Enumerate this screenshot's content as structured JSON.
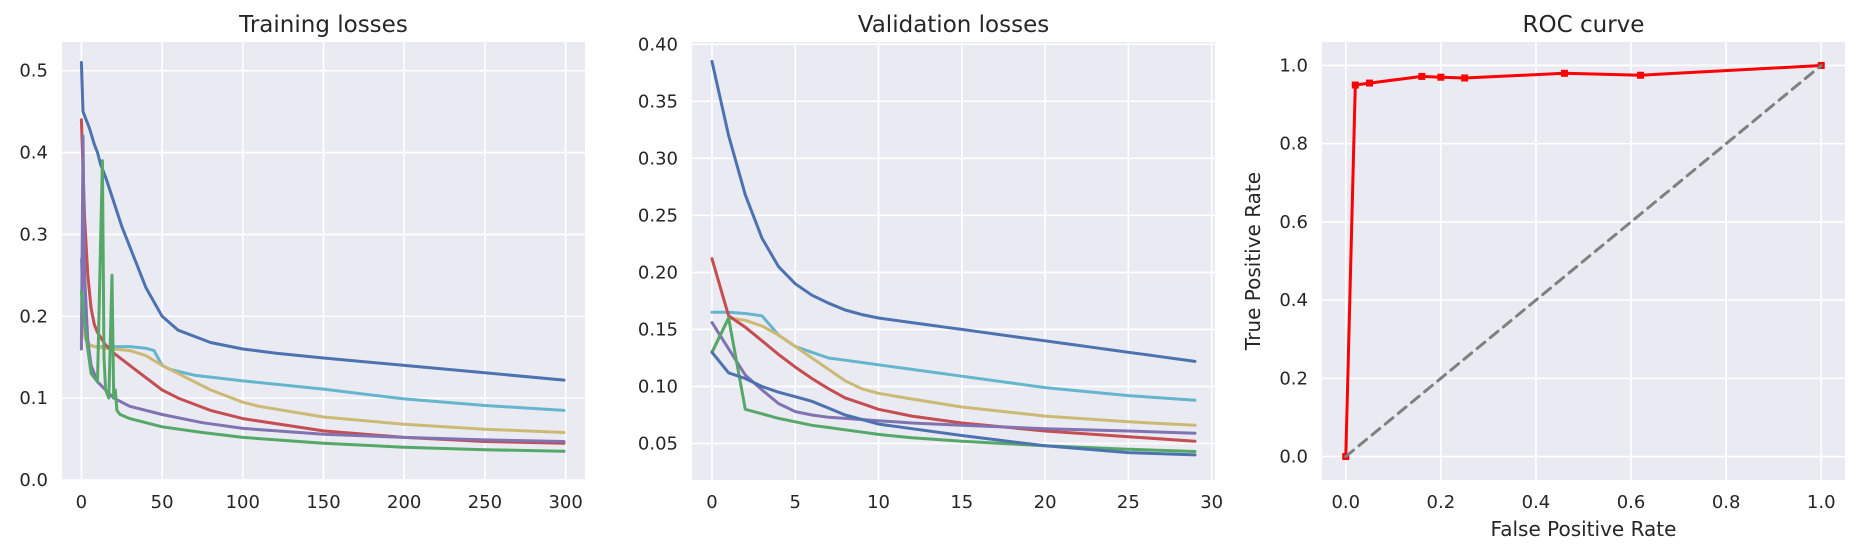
{
  "chart_data": [
    {
      "type": "line",
      "title": "Training losses",
      "xlabel": "",
      "ylabel": "",
      "xlim": [
        -12,
        312
      ],
      "ylim": [
        0,
        0.535
      ],
      "xticks": [
        0,
        50,
        100,
        150,
        200,
        250,
        300
      ],
      "yticks": [
        0.0,
        0.1,
        0.2,
        0.3,
        0.4,
        0.5
      ],
      "grid": true,
      "legend": "none",
      "series": [
        {
          "color": "#4c72b0",
          "x": [
            0,
            1,
            3,
            5,
            8,
            10,
            12,
            15,
            20,
            25,
            30,
            40,
            50,
            60,
            80,
            100,
            120,
            150,
            200,
            250,
            299
          ],
          "y": [
            0.51,
            0.45,
            0.44,
            0.43,
            0.41,
            0.4,
            0.385,
            0.37,
            0.34,
            0.31,
            0.285,
            0.235,
            0.2,
            0.183,
            0.168,
            0.16,
            0.155,
            0.149,
            0.14,
            0.131,
            0.122
          ]
        },
        {
          "color": "#64b5cd",
          "x": [
            0,
            1,
            3,
            5,
            8,
            10,
            15,
            20,
            30,
            40,
            45,
            50,
            55,
            70,
            100,
            150,
            200,
            250,
            299
          ],
          "y": [
            0.27,
            0.22,
            0.175,
            0.165,
            0.163,
            0.163,
            0.163,
            0.163,
            0.163,
            0.161,
            0.158,
            0.14,
            0.135,
            0.128,
            0.121,
            0.111,
            0.099,
            0.091,
            0.085
          ]
        },
        {
          "color": "#ccb974",
          "x": [
            0,
            1,
            3,
            5,
            10,
            20,
            30,
            40,
            50,
            60,
            80,
            100,
            110,
            150,
            200,
            250,
            299
          ],
          "y": [
            0.2,
            0.18,
            0.17,
            0.165,
            0.162,
            0.16,
            0.158,
            0.152,
            0.14,
            0.13,
            0.11,
            0.095,
            0.09,
            0.077,
            0.068,
            0.062,
            0.058
          ]
        },
        {
          "color": "#c44e52",
          "x": [
            0,
            2,
            4,
            6,
            8,
            10,
            15,
            20,
            30,
            40,
            50,
            60,
            80,
            100,
            150,
            200,
            250,
            299
          ],
          "y": [
            0.44,
            0.32,
            0.25,
            0.21,
            0.19,
            0.18,
            0.165,
            0.155,
            0.14,
            0.125,
            0.11,
            0.1,
            0.085,
            0.075,
            0.06,
            0.052,
            0.047,
            0.045
          ]
        },
        {
          "color": "#8172b2",
          "x": [
            0,
            1,
            2,
            4,
            6,
            8,
            10,
            15,
            20,
            30,
            50,
            75,
            100,
            150,
            200,
            250,
            299
          ],
          "y": [
            0.16,
            0.42,
            0.25,
            0.17,
            0.14,
            0.13,
            0.12,
            0.11,
            0.1,
            0.09,
            0.08,
            0.07,
            0.063,
            0.056,
            0.052,
            0.049,
            0.047
          ]
        },
        {
          "color": "#55a868",
          "x": [
            0,
            2,
            4,
            6,
            10,
            13,
            14,
            15,
            17,
            19,
            20,
            21,
            22,
            24,
            30,
            50,
            75,
            100,
            150,
            200,
            250,
            299
          ],
          "y": [
            0.23,
            0.19,
            0.16,
            0.13,
            0.12,
            0.39,
            0.15,
            0.11,
            0.1,
            0.25,
            0.1,
            0.11,
            0.085,
            0.08,
            0.075,
            0.065,
            0.058,
            0.052,
            0.045,
            0.04,
            0.037,
            0.035
          ]
        }
      ]
    },
    {
      "type": "line",
      "title": "Validation losses",
      "xlabel": "",
      "ylabel": "",
      "xlim": [
        -1.2,
        30.2
      ],
      "ylim": [
        0.018,
        0.402
      ],
      "xticks": [
        0,
        5,
        10,
        15,
        20,
        25,
        30
      ],
      "yticks": [
        0.05,
        0.1,
        0.15,
        0.2,
        0.25,
        0.3,
        0.35,
        0.4
      ],
      "grid": true,
      "legend": "none",
      "series": [
        {
          "color": "#4c72b0",
          "x": [
            0,
            1,
            2,
            3,
            4,
            5,
            6,
            7,
            8,
            9,
            10,
            11,
            12,
            13,
            14,
            15,
            16,
            17,
            18,
            19,
            20,
            21,
            22,
            23,
            24,
            25,
            26,
            27,
            28,
            29
          ],
          "y": [
            0.385,
            0.32,
            0.268,
            0.23,
            0.205,
            0.19,
            0.18,
            0.173,
            0.167,
            0.163,
            0.16,
            0.158,
            0.156,
            0.154,
            0.152,
            0.15,
            0.148,
            0.146,
            0.144,
            0.142,
            0.14,
            0.138,
            0.136,
            0.134,
            0.132,
            0.13,
            0.128,
            0.126,
            0.124,
            0.122
          ]
        },
        {
          "color": "#64b5cd",
          "x": [
            0,
            1,
            2,
            3,
            4,
            5,
            6,
            7,
            8,
            9,
            10,
            12,
            15,
            20,
            25,
            29
          ],
          "y": [
            0.165,
            0.165,
            0.164,
            0.162,
            0.145,
            0.135,
            0.13,
            0.125,
            0.123,
            0.121,
            0.119,
            0.115,
            0.109,
            0.099,
            0.092,
            0.088
          ]
        },
        {
          "color": "#ccb974",
          "x": [
            0,
            1,
            2,
            3,
            4,
            5,
            6,
            7,
            8,
            9,
            10,
            12,
            15,
            20,
            25,
            29
          ],
          "y": [
            0.13,
            0.16,
            0.158,
            0.153,
            0.145,
            0.135,
            0.125,
            0.115,
            0.105,
            0.098,
            0.094,
            0.089,
            0.082,
            0.074,
            0.069,
            0.066
          ]
        },
        {
          "color": "#c44e52",
          "x": [
            0,
            1,
            2,
            3,
            4,
            5,
            6,
            7,
            8,
            9,
            10,
            12,
            15,
            20,
            25,
            29
          ],
          "y": [
            0.212,
            0.162,
            0.152,
            0.14,
            0.128,
            0.117,
            0.107,
            0.098,
            0.09,
            0.085,
            0.08,
            0.074,
            0.068,
            0.061,
            0.056,
            0.052
          ]
        },
        {
          "color": "#8172b2",
          "x": [
            0,
            1,
            2,
            3,
            4,
            5,
            6,
            7,
            8,
            10,
            12,
            15,
            20,
            25,
            29
          ],
          "y": [
            0.156,
            0.133,
            0.11,
            0.097,
            0.085,
            0.078,
            0.075,
            0.073,
            0.072,
            0.07,
            0.068,
            0.066,
            0.063,
            0.061,
            0.059
          ]
        },
        {
          "color": "#55a868",
          "x": [
            0,
            1,
            2,
            3,
            4,
            5,
            6,
            7,
            8,
            10,
            12,
            15,
            20,
            25,
            29
          ],
          "y": [
            0.13,
            0.16,
            0.08,
            0.076,
            0.072,
            0.069,
            0.066,
            0.064,
            0.062,
            0.058,
            0.055,
            0.052,
            0.048,
            0.045,
            0.043
          ]
        },
        {
          "color": "#4c72b0",
          "x": [
            0,
            1,
            2,
            3,
            4,
            5,
            6,
            7,
            8,
            9,
            10,
            12,
            15,
            20,
            25,
            29
          ],
          "y": [
            0.13,
            0.112,
            0.107,
            0.1,
            0.095,
            0.091,
            0.087,
            0.081,
            0.075,
            0.071,
            0.067,
            0.063,
            0.057,
            0.048,
            0.042,
            0.04
          ]
        }
      ]
    },
    {
      "type": "line",
      "title": "ROC curve",
      "xlabel": "False Positive Rate",
      "ylabel": "True Positive Rate",
      "xlim": [
        -0.05,
        1.05
      ],
      "ylim": [
        -0.06,
        1.06
      ],
      "xticks": [
        0.0,
        0.2,
        0.4,
        0.6,
        0.8,
        1.0
      ],
      "yticks": [
        0.0,
        0.2,
        0.4,
        0.6,
        0.8,
        1.0
      ],
      "grid": true,
      "legend": "none",
      "series": [
        {
          "color": "#ff0000",
          "markers": true,
          "x": [
            0.0,
            0.02,
            0.05,
            0.16,
            0.2,
            0.25,
            0.46,
            0.62,
            1.0
          ],
          "y": [
            0.0,
            0.95,
            0.955,
            0.972,
            0.97,
            0.968,
            0.98,
            0.975,
            1.0
          ]
        },
        {
          "color": "#808080",
          "dashed": true,
          "x": [
            0.0,
            1.0
          ],
          "y": [
            0.0,
            1.0
          ]
        }
      ]
    }
  ]
}
